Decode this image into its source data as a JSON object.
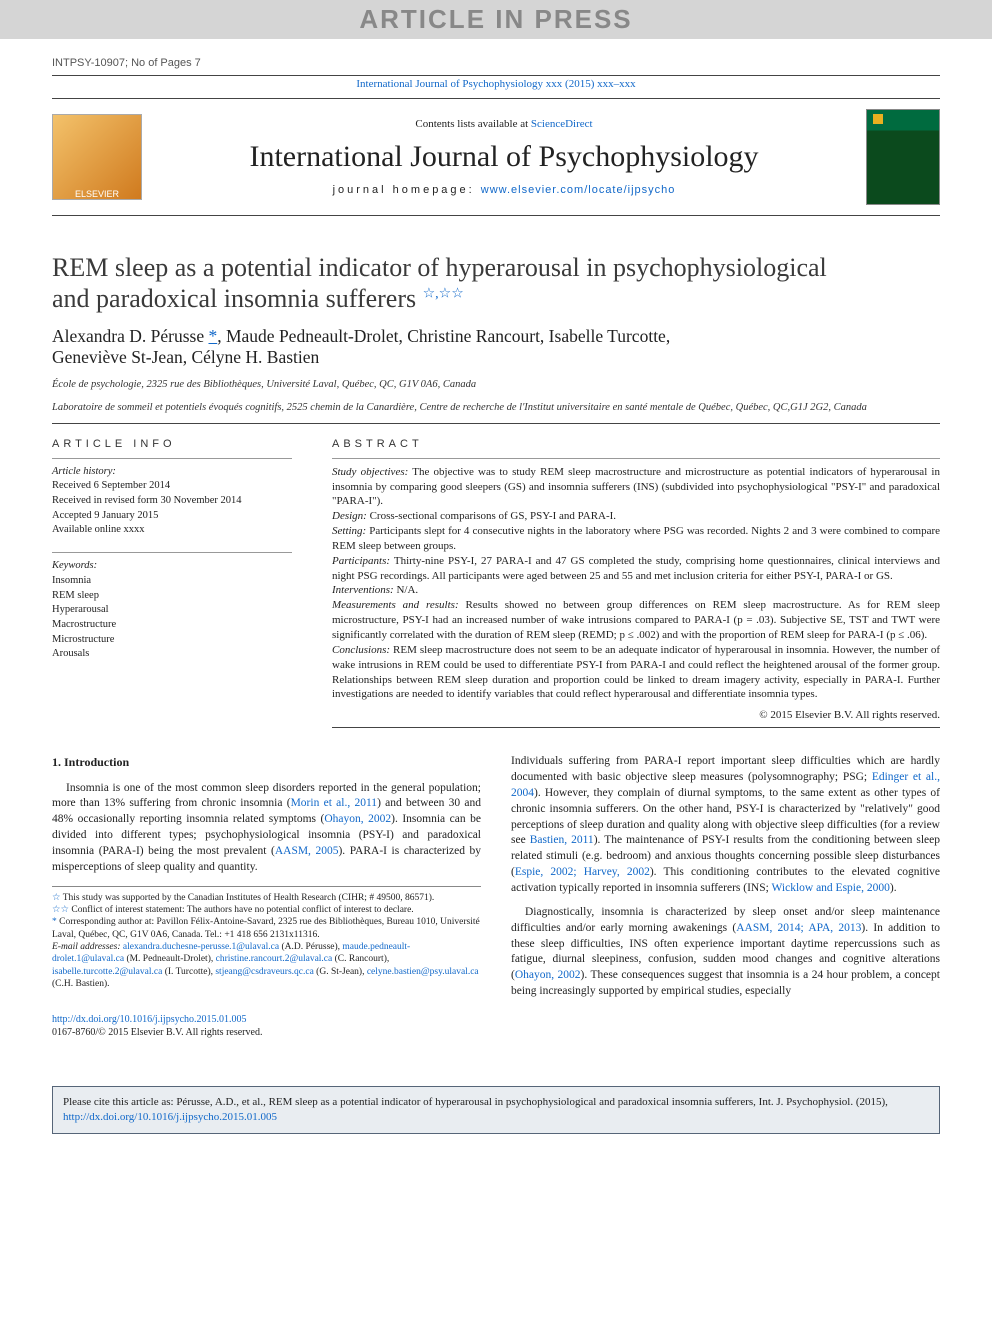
{
  "banner": "ARTICLE IN PRESS",
  "meta_id": "INTPSY-10907; No of Pages 7",
  "journal_ref": "International Journal of Psychophysiology xxx (2015) xxx–xxx",
  "contents_line_pre": "Contents lists available at ",
  "contents_link": "ScienceDirect",
  "journal_title": "International Journal of Psychophysiology",
  "homepage_pre": "journal homepage: ",
  "homepage_link": "www.elsevier.com/locate/ijpsycho",
  "logo_text": "ELSEVIER",
  "title_line1": "REM sleep as a potential indicator of hyperarousal in psychophysiological",
  "title_line2": "and paradoxical insomnia sufferers",
  "title_stars": "☆,☆☆",
  "authors_line1": "Alexandra D. Pérusse ",
  "authors_corr": "*",
  "authors_line1b": ", Maude Pedneault-Drolet, Christine Rancourt, Isabelle Turcotte,",
  "authors_line2": "Geneviève St-Jean, Célyne H. Bastien",
  "affil1": "École de psychologie, 2325 rue des Bibliothèques, Université Laval, Québec, QC, G1V 0A6, Canada",
  "affil2": "Laboratoire de sommeil et potentiels évoqués cognitifs, 2525 chemin de la Canardière, Centre de recherche de l'Institut universitaire en santé mentale de Québec, Québec, QC,G1J 2G2, Canada",
  "info_head": "article info",
  "abs_head": "abstract",
  "hist_label": "Article history:",
  "hist": [
    "Received 6 September 2014",
    "Received in revised form 30 November 2014",
    "Accepted 9 January 2015",
    "Available online xxxx"
  ],
  "kw_label": "Keywords:",
  "kw": [
    "Insomnia",
    "REM sleep",
    "Hyperarousal",
    "Macrostructure",
    "Microstructure",
    "Arousals"
  ],
  "ab": {
    "objectives_l": "Study objectives:",
    "objectives": " The objective was to study REM sleep macrostructure and microstructure as potential indicators of hyperarousal in insomnia by comparing good sleepers (GS) and insomnia sufferers (INS) (subdivided into psychophysiological \"PSY-I\" and paradoxical \"PARA-I\").",
    "design_l": "Design:",
    "design": " Cross-sectional comparisons of GS, PSY-I and PARA-I.",
    "setting_l": "Setting:",
    "setting": " Participants slept for 4 consecutive nights in the laboratory where PSG was recorded. Nights 2 and 3 were combined to compare REM sleep between groups.",
    "participants_l": "Participants:",
    "participants": " Thirty-nine PSY-I, 27 PARA-I and 47 GS completed the study, comprising home questionnaires, clinical interviews and night PSG recordings. All participants were aged between 25 and 55 and met inclusion criteria for either PSY-I, PARA-I or GS.",
    "interventions_l": "Interventions:",
    "interventions": " N/A.",
    "mr_l": "Measurements and results:",
    "mr": " Results showed no between group differences on REM sleep macrostructure. As for REM sleep microstructure, PSY-I had an increased number of wake intrusions compared to PARA-I (p = .03). Subjective SE, TST and TWT were significantly correlated with the duration of REM sleep (REMD; p ≤ .002) and with the proportion of REM sleep for PARA-I (p ≤ .06).",
    "concl_l": "Conclusions:",
    "concl": " REM sleep macrostructure does not seem to be an adequate indicator of hyperarousal in insomnia. However, the number of wake intrusions in REM could be used to differentiate PSY-I from PARA-I and could reflect the heightened arousal of the former group. Relationships between REM sleep duration and proportion could be linked to dream imagery activity, especially in PARA-I. Further investigations are needed to identify variables that could reflect hyperarousal and differentiate insomnia types."
  },
  "copyright": "© 2015 Elsevier B.V. All rights reserved.",
  "intro_title": "1. Introduction",
  "intro_p1a": "Insomnia is one of the most common sleep disorders reported in the general population; more than 13% suffering from chronic insomnia (",
  "intro_p1_ref1": "Morin et al., 2011",
  "intro_p1b": ") and between 30 and 48% occasionally reporting insomnia related symptoms (",
  "intro_p1_ref2": "Ohayon, 2002",
  "intro_p1c": "). Insomnia can be divided into different types; psychophysiological insomnia (PSY-I) and paradoxical insomnia (PARA-I) being the most prevalent (",
  "intro_p1_ref3": "AASM, 2005",
  "intro_p1d": "). PARA-I is characterized by misperceptions of sleep quality and quantity.",
  "col2_p1a": "Individuals suffering from PARA-I report important sleep difficulties which are hardly documented with basic objective sleep measures (polysomnography; PSG; ",
  "col2_p1_ref1": "Edinger et al., 2004",
  "col2_p1b": "). However, they complain of diurnal symptoms, to the same extent as other types of chronic insomnia sufferers. On the other hand, PSY-I is characterized by \"relatively\" good perceptions of sleep duration and quality along with objective sleep difficulties (for a review see ",
  "col2_p1_ref2": "Bastien, 2011",
  "col2_p1c": "). The maintenance of PSY-I results from the conditioning between sleep related stimuli (e.g. bedroom) and anxious thoughts concerning possible sleep disturbances (",
  "col2_p1_ref3": "Espie, 2002; Harvey, 2002",
  "col2_p1d": "). This conditioning contributes to the elevated cognitive activation typically reported in insomnia sufferers (INS; ",
  "col2_p1_ref4": "Wicklow and Espie, 2000",
  "col2_p1e": ").",
  "col2_p2a": "Diagnostically, insomnia is characterized by sleep onset and/or sleep maintenance difficulties and/or early morning awakenings (",
  "col2_p2_ref1": "AASM, 2014; APA, 2013",
  "col2_p2b": "). In addition to these sleep difficulties, INS often experience important daytime repercussions such as fatigue, diurnal sleepiness, confusion, sudden mood changes and cognitive alterations (",
  "col2_p2_ref2": "Ohayon, 2002",
  "col2_p2c": "). These consequences suggest that insomnia is a 24 hour problem, a concept being increasingly supported by empirical studies, especially",
  "fn": {
    "f1_star": "☆",
    "f1": " This study was supported by the Canadian Institutes of Health Research (CIHR; # 49500, 86571).",
    "f2_star": "☆☆",
    "f2": " Conflict of interest statement: The authors have no potential conflict of interest to declare.",
    "f3_star": "*",
    "f3": " Corresponding author at: Pavillon Félix-Antoine-Savard, 2325 rue des Bibliothèques, Bureau 1010, Université Laval, Québec, QC, G1V 0A6, Canada. Tel.: +1 418 656 2131x11316.",
    "em_label": "E-mail addresses: ",
    "em1": "alexandra.duchesne-perusse.1@ulaval.ca",
    "em1_who": " (A.D. Pérusse), ",
    "em2": "maude.pedneault-drolet.1@ulaval.ca",
    "em2_who": " (M. Pedneault-Drolet), ",
    "em3": "christine.rancourt.2@ulaval.ca",
    "em3_who": " (C. Rancourt), ",
    "em4": "isabelle.turcotte.2@ulaval.ca",
    "em4_who": " (I. Turcotte), ",
    "em5": "stjeang@csdraveurs.qc.ca",
    "em5_who": " (G. St-Jean), ",
    "em6": "celyne.bastien@psy.ulaval.ca",
    "em6_who": " (C.H. Bastien)."
  },
  "doi": "http://dx.doi.org/10.1016/j.ijpsycho.2015.01.005",
  "issn_line": "0167-8760/© 2015 Elsevier B.V. All rights reserved.",
  "cite_pre": "Please cite this article as: Pérusse, A.D., et al., REM sleep as a potential indicator of hyperarousal in psychophysiological and paradoxical insomnia sufferers, Int. J. Psychophysiol. (2015), ",
  "cite_link": "http://dx.doi.org/10.1016/j.ijpsycho.2015.01.005",
  "colors": {
    "link": "#1168c9",
    "banner_bg": "#d5d5d5",
    "banner_fg": "#888888",
    "cite_bg": "#e9edf1",
    "cite_border": "#566578"
  }
}
